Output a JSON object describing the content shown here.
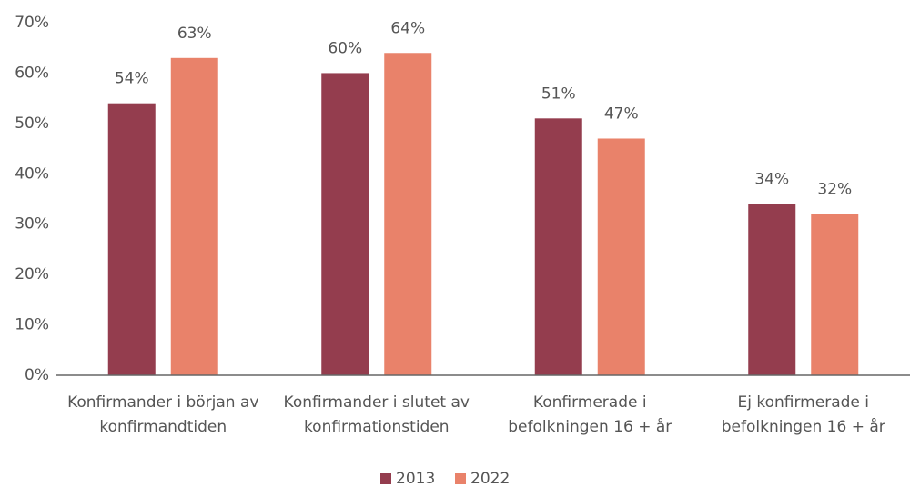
{
  "chart_data": {
    "type": "bar",
    "categories": [
      "Konfirmander i början av konfirmandtiden",
      "Konfirmander i slutet av konfirmationstiden",
      "Konfirmerade i befolkningen 16 + år",
      "Ej konfirmerade i befolkningen 16 + år"
    ],
    "series": [
      {
        "name": "2013",
        "color": "#943d4e",
        "values": [
          54,
          60,
          51,
          34
        ],
        "value_labels": [
          "54%",
          "60%",
          "51%",
          "34%"
        ]
      },
      {
        "name": "2022",
        "color": "#e9826a",
        "values": [
          63,
          64,
          47,
          32
        ],
        "value_labels": [
          "63%",
          "64%",
          "47%",
          "32%"
        ]
      }
    ],
    "ylim": [
      0,
      70
    ],
    "yticks": [
      {
        "value": 0,
        "label": "0%"
      },
      {
        "value": 10,
        "label": "10%"
      },
      {
        "value": 20,
        "label": "20%"
      },
      {
        "value": 30,
        "label": "30%"
      },
      {
        "value": 40,
        "label": "40%"
      },
      {
        "value": 50,
        "label": "50%"
      },
      {
        "value": 60,
        "label": "60%"
      },
      {
        "value": 70,
        "label": "70%"
      }
    ],
    "grid": false,
    "legend": "bottom"
  }
}
